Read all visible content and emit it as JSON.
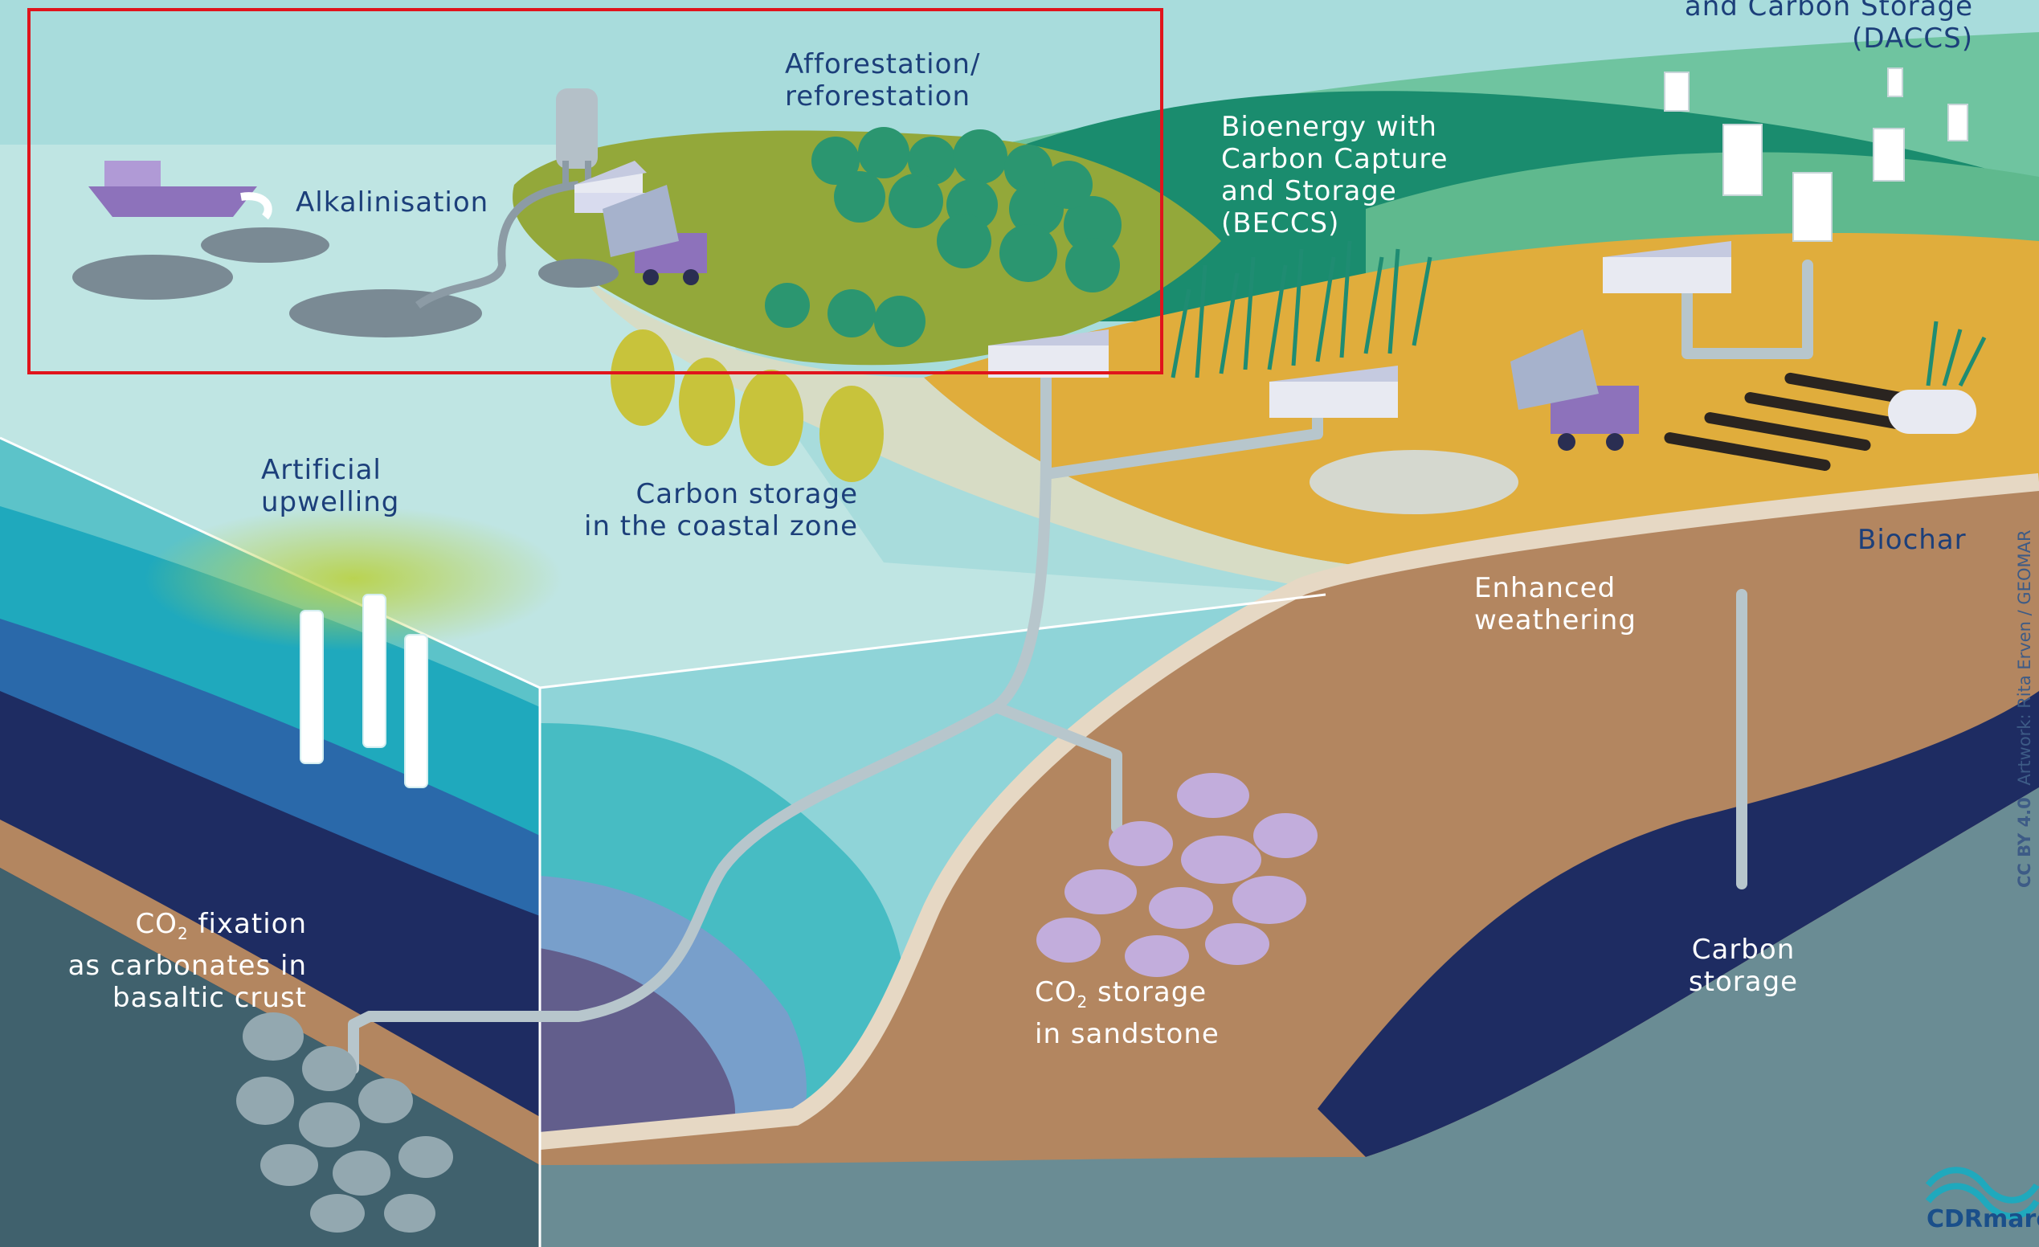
{
  "labels": {
    "daccs_line1": "and Carbon Storage",
    "daccs_line2": "(DACCS)",
    "afforestation_line1": "Afforestation/",
    "afforestation_line2": "reforestation",
    "alkalinisation": "Alkalinisation",
    "beccs_line1": "Bioenergy with",
    "beccs_line2": "Carbon Capture",
    "beccs_line3": "and Storage",
    "beccs_line4": "(BECCS)",
    "upwelling_line1": "Artificial",
    "upwelling_line2": "upwelling",
    "coastal_line1": "Carbon storage",
    "coastal_line2": "in the coastal zone",
    "biochar": "Biochar",
    "weathering_line1": "Enhanced",
    "weathering_line2": "weathering",
    "fixation_co": "CO",
    "fixation_sub": "2",
    "fixation_line1_rest": " fixation",
    "fixation_line2": "as carbonates in",
    "fixation_line3": "basaltic crust",
    "sandstone_co": "CO",
    "sandstone_sub": "2",
    "sandstone_line1_rest": " storage",
    "sandstone_line2": "in sandstone",
    "carbon_storage_line1": "Carbon",
    "carbon_storage_line2": "storage"
  },
  "credit": {
    "license": "CC BY 4.0",
    "artwork": "Artwork: Rita Erven / GEOMAR"
  },
  "logo": {
    "text": "CDRmare"
  },
  "colors": {
    "sky": "#a8dcdc",
    "hill_dark": "#1a8c6e",
    "hill_mid": "#5fb98e",
    "field_olive": "#93a83a",
    "field_yellow": "#e0ad3c",
    "sediment_brown": "#b38660",
    "deep_navy": "#1e2c62",
    "bedrock": "#6a8c94",
    "highlight_box": "#e0141c"
  }
}
